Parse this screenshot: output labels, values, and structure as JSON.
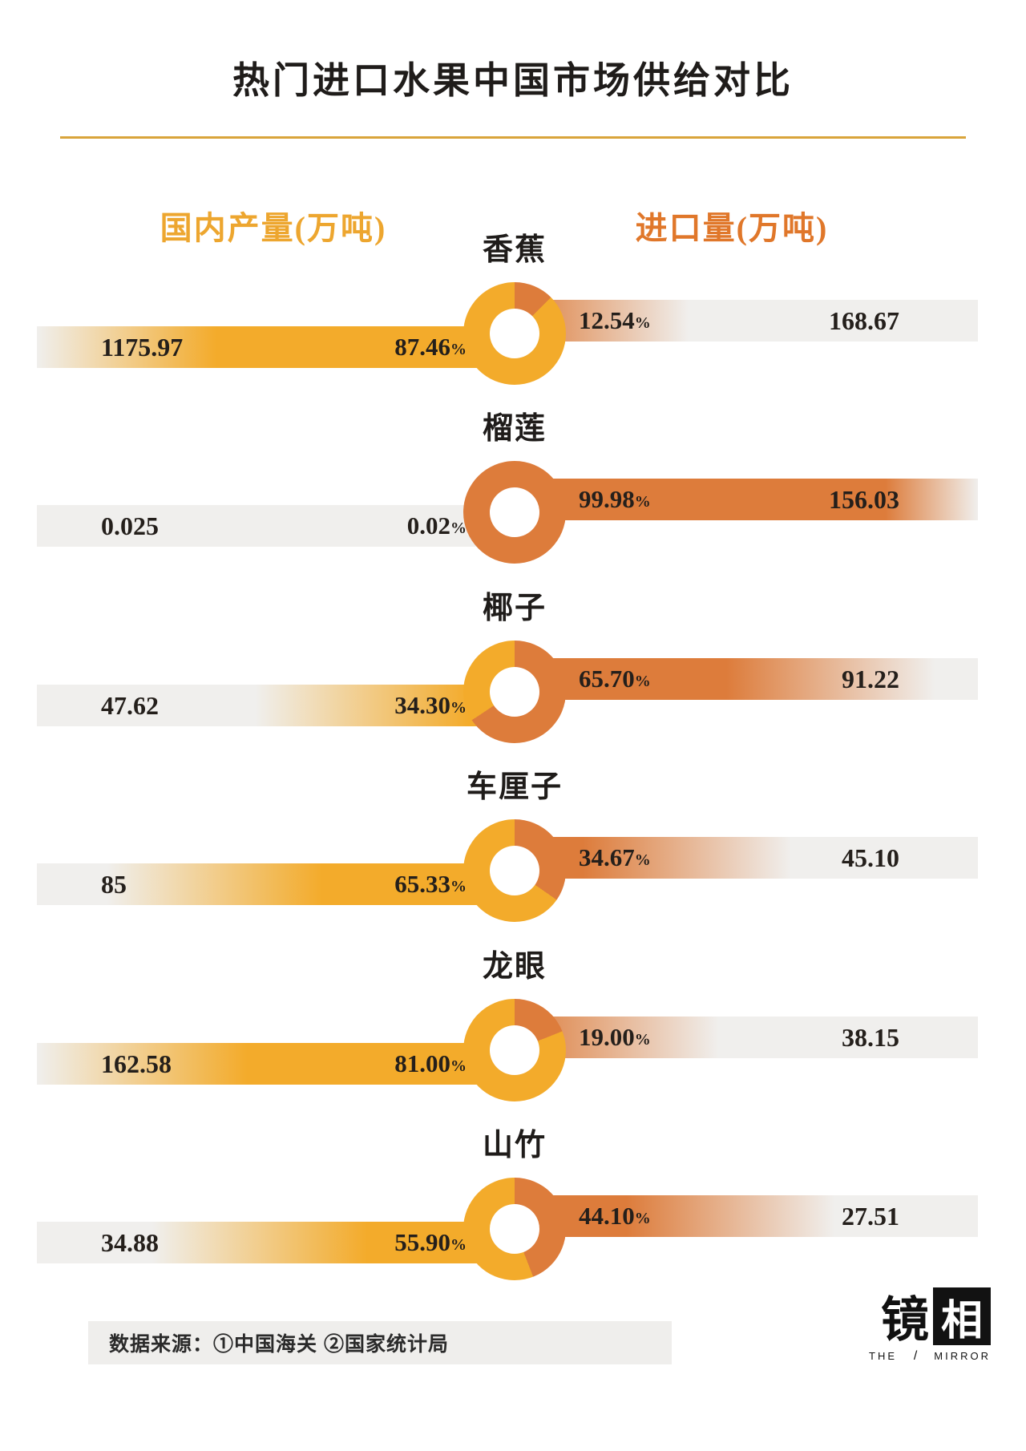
{
  "title": "热门进口水果中国市场供给对比",
  "colors": {
    "yellow": "#f3ab2b",
    "orange": "#dd7c3b",
    "bar_gray": "#f0efed",
    "divider_gold": "#d9a43b",
    "domestic_header": "#eda62f",
    "import_header": "#e0772a"
  },
  "footer": {
    "source": "数据来源：①中国海关 ②国家统计局"
  },
  "logo": {
    "char1": "镜",
    "char2": "相",
    "the": "THE",
    "slash": "/",
    "mirror": "MIRROR"
  },
  "chart_data": {
    "type": "donut-bar-comparison",
    "unit": "万吨",
    "pct_sign": "%",
    "legend_position": "top",
    "series_labels": {
      "domestic": "国内产量(万吨)",
      "import": "进口量(万吨)"
    },
    "rows": [
      {
        "fruit": "香蕉",
        "domestic_value": "1175.97",
        "domestic_pct": "87.46",
        "import_pct": "12.54",
        "import_value": "168.67"
      },
      {
        "fruit": "榴莲",
        "domestic_value": "0.025",
        "domestic_pct": "0.02",
        "import_pct": "99.98",
        "import_value": "156.03"
      },
      {
        "fruit": "椰子",
        "domestic_value": "47.62",
        "domestic_pct": "34.30",
        "import_pct": "65.70",
        "import_value": "91.22"
      },
      {
        "fruit": "车厘子",
        "domestic_value": "85",
        "domestic_pct": "65.33",
        "import_pct": "34.67",
        "import_value": "45.10"
      },
      {
        "fruit": "龙眼",
        "domestic_value": "162.58",
        "domestic_pct": "81.00",
        "import_pct": "19.00",
        "import_value": "38.15"
      },
      {
        "fruit": "山竹",
        "domestic_value": "34.88",
        "domestic_pct": "55.90",
        "import_pct": "44.10",
        "import_value": "27.51"
      }
    ]
  }
}
